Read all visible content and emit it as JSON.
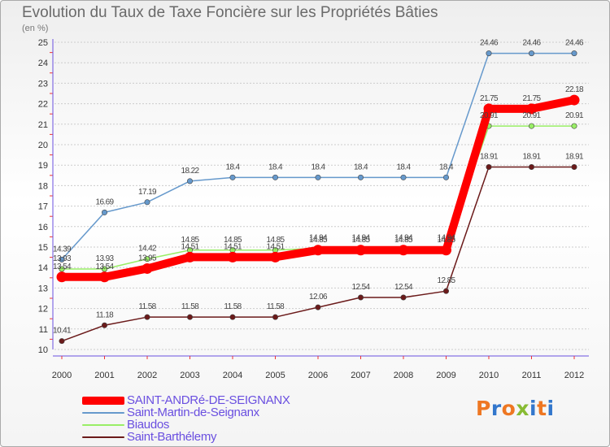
{
  "chart_data": {
    "type": "line",
    "title": "Evolution du Taux de Taxe Foncière sur les Propriétés Bâties",
    "subtitle": "(en %)",
    "ylim": [
      10,
      25
    ],
    "y_ticks": [
      10,
      11,
      12,
      13,
      14,
      15,
      16,
      17,
      18,
      19,
      20,
      21,
      22,
      23,
      24,
      25
    ],
    "grid": "horizontal dotted",
    "legend_position": "bottom-left",
    "categories": [
      "2000",
      "2001",
      "2002",
      "2003",
      "2004",
      "2005",
      "2006",
      "2007",
      "2008",
      "2009",
      "2010",
      "2011",
      "2012"
    ],
    "series": [
      {
        "name": "Saint-Barthélemy",
        "color": "#6b1a1a",
        "values": [
          10.41,
          11.18,
          11.58,
          11.58,
          11.58,
          11.58,
          12.06,
          12.54,
          12.54,
          12.85,
          18.91,
          18.91,
          18.91
        ],
        "labels": [
          "10.41",
          "11.18",
          "11.58",
          "11.58",
          "11.58",
          "11.58",
          "12.06",
          "12.54",
          "12.54",
          "12.85",
          "18.91",
          "18.91",
          "18.91"
        ]
      },
      {
        "name": "Biaudos",
        "color": "#99ee66",
        "values": [
          13.93,
          13.93,
          14.42,
          14.85,
          14.85,
          14.85,
          14.94,
          14.94,
          14.94,
          14.94,
          20.91,
          20.91,
          20.91
        ],
        "labels": [
          "13.93",
          "13.93",
          "14.42",
          "14.85",
          "14.85",
          "14.85",
          "14.94",
          "14.94",
          "14.94",
          "14.94",
          "20.91",
          "20.91",
          "20.91"
        ]
      },
      {
        "name": "Saint-Martin-de-Seignanx",
        "color": "#6699cc",
        "values": [
          14.39,
          16.69,
          17.19,
          18.22,
          18.4,
          18.4,
          18.4,
          18.4,
          18.4,
          18.4,
          24.46,
          24.46,
          24.46
        ],
        "labels": [
          "14.39",
          "16.69",
          "17.19",
          "18.22",
          "18.4",
          "18.4",
          "18.4",
          "18.4",
          "18.4",
          "18.4",
          "24.46",
          "24.46",
          "24.46"
        ]
      },
      {
        "name": "SAINT-ANDRé-DE-SEIGNANX",
        "color": "#ff0000",
        "values": [
          13.54,
          13.54,
          13.95,
          14.51,
          14.51,
          14.51,
          14.85,
          14.85,
          14.85,
          14.85,
          21.75,
          21.75,
          22.18
        ],
        "labels": [
          "13.54",
          "13.54",
          "13.95",
          "14.51",
          "14.51",
          "14.51",
          "14.85",
          "14.85",
          "14.85",
          "14.85",
          "21.75",
          "21.75",
          "22.18"
        ]
      }
    ]
  },
  "legend": {
    "items": [
      {
        "label": "SAINT-ANDRé-DE-SEIGNANX",
        "color": "#ff0000",
        "text_color": "#6a4fe0"
      },
      {
        "label": "Saint-Martin-de-Seignanx",
        "color": "#6699cc",
        "text_color": "#6a4fe0"
      },
      {
        "label": "Biaudos",
        "color": "#99ee66",
        "text_color": "#6a4fe0"
      },
      {
        "label": "Saint-Barthélemy",
        "color": "#6b1a1a",
        "text_color": "#6a4fe0"
      }
    ]
  },
  "logo": {
    "text": "Proxiti",
    "colors": [
      "#ee7722",
      "#3377cc",
      "#ee7722",
      "#88bb33",
      "#3377cc",
      "#ee7722",
      "#3377cc"
    ]
  }
}
